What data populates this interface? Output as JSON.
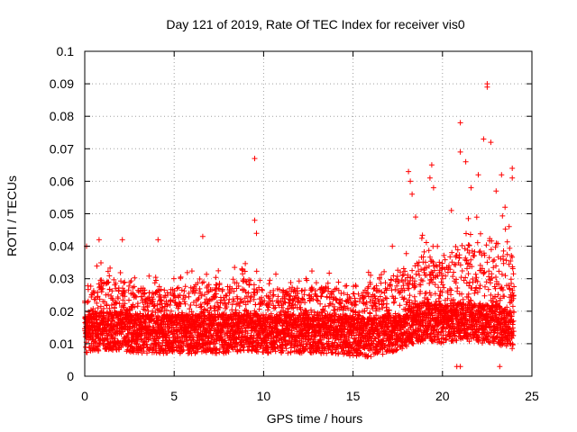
{
  "chart_data": {
    "type": "scatter",
    "title": "Day 121 of 2019, Rate Of TEC Index for receiver vis0",
    "xlabel": "GPS time / hours",
    "ylabel": "ROTI / TECUs",
    "xlim": [
      0,
      25
    ],
    "ylim": [
      0,
      0.1
    ],
    "xticks": [
      0,
      5,
      10,
      15,
      20,
      25
    ],
    "yticks": [
      0,
      0.01,
      0.02,
      0.03,
      0.04,
      0.05,
      0.06,
      0.07,
      0.08,
      0.09,
      0.1
    ],
    "xtick_labels": [
      "0",
      "5",
      "10",
      "15",
      "20",
      "25"
    ],
    "ytick_labels": [
      "0",
      "0.01",
      "0.02",
      "0.03",
      "0.04",
      "0.05",
      "0.06",
      "0.07",
      "0.08",
      "0.09",
      "0.1"
    ],
    "grid": true,
    "marker": "+",
    "color": "#ff0000",
    "series": [
      {
        "name": "ROTI",
        "x_range": [
          0,
          24
        ],
        "baseline_profile": {
          "x": [
            0,
            1,
            2,
            3,
            4,
            5,
            6,
            7,
            8,
            9,
            10,
            11,
            12,
            13,
            14,
            15,
            16,
            17,
            18,
            19,
            20,
            21,
            22,
            23,
            24
          ],
          "median": [
            0.013,
            0.014,
            0.014,
            0.013,
            0.013,
            0.013,
            0.013,
            0.013,
            0.013,
            0.014,
            0.013,
            0.013,
            0.013,
            0.013,
            0.013,
            0.012,
            0.012,
            0.013,
            0.015,
            0.017,
            0.016,
            0.017,
            0.016,
            0.016,
            0.014
          ],
          "upper": [
            0.032,
            0.036,
            0.035,
            0.031,
            0.031,
            0.032,
            0.034,
            0.034,
            0.034,
            0.035,
            0.031,
            0.032,
            0.031,
            0.033,
            0.032,
            0.03,
            0.034,
            0.036,
            0.04,
            0.045,
            0.042,
            0.048,
            0.05,
            0.052,
            0.045
          ]
        },
        "notable_points": [
          [
            0.1,
            0.04
          ],
          [
            0.8,
            0.042
          ],
          [
            2.1,
            0.042
          ],
          [
            4.1,
            0.042
          ],
          [
            6.6,
            0.043
          ],
          [
            9.5,
            0.067
          ],
          [
            9.5,
            0.048
          ],
          [
            9.6,
            0.044
          ],
          [
            17.2,
            0.04
          ],
          [
            18.1,
            0.063
          ],
          [
            18.2,
            0.06
          ],
          [
            18.3,
            0.056
          ],
          [
            18.5,
            0.049
          ],
          [
            19.3,
            0.061
          ],
          [
            19.4,
            0.065
          ],
          [
            19.5,
            0.058
          ],
          [
            20.5,
            0.051
          ],
          [
            21.0,
            0.078
          ],
          [
            21.0,
            0.069
          ],
          [
            21.3,
            0.066
          ],
          [
            21.6,
            0.058
          ],
          [
            22.0,
            0.062
          ],
          [
            22.3,
            0.073
          ],
          [
            22.5,
            0.09
          ],
          [
            22.5,
            0.089
          ],
          [
            22.7,
            0.072
          ],
          [
            23.0,
            0.057
          ],
          [
            23.3,
            0.062
          ],
          [
            23.5,
            0.052
          ],
          [
            23.9,
            0.064
          ],
          [
            23.9,
            0.061
          ],
          [
            20.8,
            0.003
          ],
          [
            21.0,
            0.003
          ],
          [
            23.2,
            0.003
          ]
        ]
      }
    ]
  }
}
